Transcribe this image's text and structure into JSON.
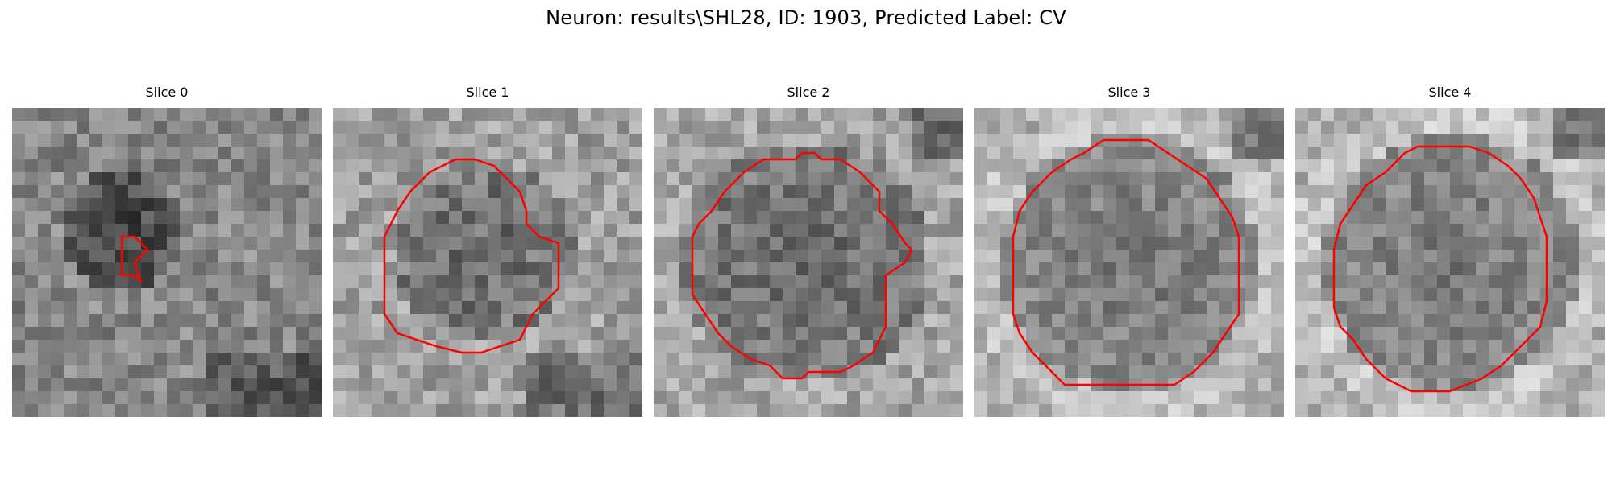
{
  "figure": {
    "title": "Neuron: results\\SHL28, ID: 1903, Predicted Label: CV",
    "outline_color": "#ff0000",
    "colormap": "gray"
  },
  "slices": [
    {
      "label": "Slice 0"
    },
    {
      "label": "Slice 1"
    },
    {
      "label": "Slice 2"
    },
    {
      "label": "Slice 3"
    },
    {
      "label": "Slice 4"
    }
  ]
}
